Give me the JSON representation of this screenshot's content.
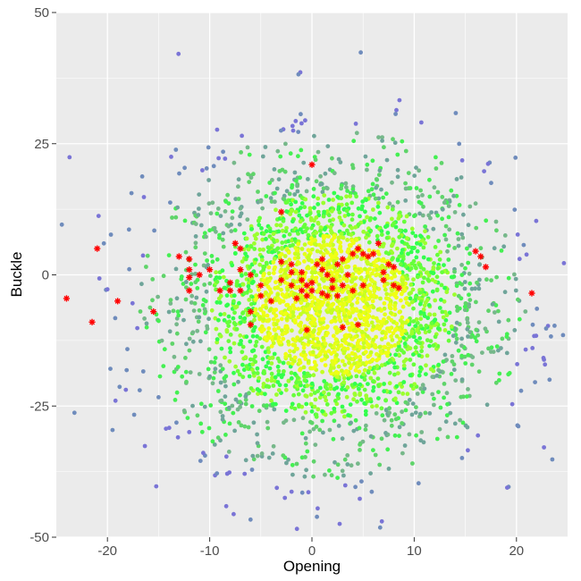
{
  "chart_data": {
    "type": "scatter",
    "xlabel": "Opening",
    "ylabel": "Buckle",
    "xlim": [
      -25,
      25
    ],
    "ylim": [
      -50,
      50
    ],
    "x_ticks": [
      -20,
      -10,
      0,
      10,
      20
    ],
    "y_ticks": [
      -50,
      -25,
      0,
      25,
      50
    ],
    "x_tick_labels": [
      "-20",
      "-10",
      "0",
      "10",
      "20"
    ],
    "y_tick_labels": [
      "-50",
      "-25",
      "0",
      "25",
      "50"
    ],
    "grid": true,
    "legend": "none",
    "background_color": "#ebebeb",
    "gridline_color": "#ffffff",
    "point_color_gradient": [
      "#e6ff1a",
      "#9cff2e",
      "#33ff4d",
      "#6fb58a",
      "#7a74d6"
    ],
    "background_cloud": {
      "shape": "radial",
      "center": [
        2,
        -6
      ],
      "core_colors": [
        "#f0ff14",
        "#e4ff1a",
        "#c4ff22"
      ],
      "mid_colors": [
        "#9cff2e",
        "#66ff3a",
        "#33ff4d"
      ],
      "outer_colors": [
        "#44f052",
        "#5fd46a",
        "#76b88a",
        "#6fa59a"
      ],
      "sparse_colors": [
        "#6f8cbc",
        "#7a74d6"
      ]
    },
    "highlight_series": {
      "marker": "asterisk",
      "color": "#ff0000",
      "points": [
        [
          0,
          21
        ],
        [
          -3,
          12
        ],
        [
          -7.5,
          6
        ],
        [
          -7,
          5
        ],
        [
          -12,
          3
        ],
        [
          -13,
          3.5
        ],
        [
          -10,
          1
        ],
        [
          -12,
          1
        ],
        [
          -11,
          0
        ],
        [
          -12,
          -0.5
        ],
        [
          -7,
          1
        ],
        [
          -8,
          -1.5
        ],
        [
          -7,
          -3
        ],
        [
          -8,
          -3
        ],
        [
          -9,
          -3
        ],
        [
          -6,
          0
        ],
        [
          -5,
          -2
        ],
        [
          -5,
          -4
        ],
        [
          -6,
          -7
        ],
        [
          -6,
          -9.5
        ],
        [
          -4,
          -5
        ],
        [
          -3,
          2.5
        ],
        [
          -2,
          2
        ],
        [
          -3,
          -1
        ],
        [
          -2,
          -2
        ],
        [
          -1,
          -1
        ],
        [
          -0.5,
          -2
        ],
        [
          0,
          -1.5
        ],
        [
          -1,
          -3
        ],
        [
          0,
          -3
        ],
        [
          -0.5,
          -4
        ],
        [
          -1.5,
          -4.5
        ],
        [
          0.5,
          2
        ],
        [
          1,
          3
        ],
        [
          1,
          1
        ],
        [
          1.5,
          0
        ],
        [
          2,
          -1
        ],
        [
          2.5,
          2
        ],
        [
          3,
          3
        ],
        [
          4,
          4
        ],
        [
          4.5,
          5
        ],
        [
          5,
          4
        ],
        [
          6,
          4
        ],
        [
          5.5,
          3.5
        ],
        [
          6.5,
          6
        ],
        [
          3.5,
          0
        ],
        [
          3,
          -2
        ],
        [
          2,
          -2.5
        ],
        [
          4,
          -3
        ],
        [
          5,
          -2
        ],
        [
          7,
          -1
        ],
        [
          8,
          -2
        ],
        [
          8.5,
          -2.5
        ],
        [
          7.5,
          2
        ],
        [
          8,
          1.5
        ],
        [
          7,
          0.5
        ],
        [
          1,
          -3.5
        ],
        [
          1.5,
          -4
        ],
        [
          2.5,
          -4
        ],
        [
          3,
          -10
        ],
        [
          4.5,
          -9.5
        ],
        [
          -0.5,
          -10.5
        ],
        [
          -2,
          0.5
        ],
        [
          -1,
          0.5
        ],
        [
          -24,
          -4.5
        ],
        [
          -21,
          5
        ],
        [
          -21.5,
          -9
        ],
        [
          -19,
          -5
        ],
        [
          -15.5,
          -7
        ],
        [
          16,
          4.5
        ],
        [
          16.5,
          3.5
        ],
        [
          17,
          1.5
        ],
        [
          21.5,
          -3.5
        ],
        [
          -12,
          -3
        ]
      ]
    }
  }
}
